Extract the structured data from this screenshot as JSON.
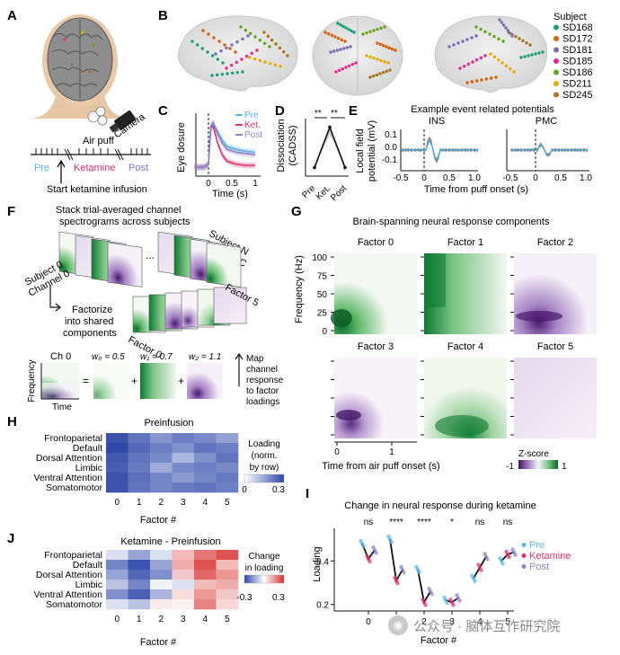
{
  "panels": {
    "A": "A",
    "B": "B",
    "C": "C",
    "D": "D",
    "E": "E",
    "F": "F",
    "G": "G",
    "H": "H",
    "I": "I",
    "J": "J"
  },
  "panel_a": {
    "air_puff": "Air puff",
    "camera": "Camera",
    "pre": "Pre",
    "ketamine": "Ketamine",
    "post": "Post",
    "start_infusion": "Start ketamine infusion"
  },
  "panel_b": {
    "legend_title": "Subject",
    "subjects": [
      {
        "name": "SD168",
        "color": "#1b9e77"
      },
      {
        "name": "SD172",
        "color": "#d95f02"
      },
      {
        "name": "SD181",
        "color": "#7570b3"
      },
      {
        "name": "SD185",
        "color": "#e7298a"
      },
      {
        "name": "SD186",
        "color": "#66a61e"
      },
      {
        "name": "SD211",
        "color": "#e6ab02"
      },
      {
        "name": "SD245",
        "color": "#a6761d"
      }
    ]
  },
  "panel_c": {
    "ylabel": "Eye dosure",
    "xlabel": "Time (s)",
    "legend": [
      {
        "name": "Pre",
        "color": "#5ab4e6"
      },
      {
        "name": "Ket.",
        "color": "#e0336a"
      },
      {
        "name": "Post",
        "color": "#8f84c6"
      }
    ],
    "xticks": [
      "0",
      "0.5",
      "1"
    ]
  },
  "panel_d": {
    "ylabel_1": "Dissociation",
    "ylabel_2": "(CADSS)",
    "sig1": "**",
    "sig2": "**",
    "xticks": [
      "Pre",
      "Ket.",
      "Post"
    ]
  },
  "panel_e": {
    "title": "Example event related potentials",
    "ylabel_1": "Local field",
    "ylabel_2": "potential (mV)",
    "xlabel": "Time from puff onset (s)",
    "subplots": [
      {
        "title": "INS",
        "xticks": [
          "-0.5",
          "0",
          "0.5",
          "1.0"
        ]
      },
      {
        "title": "PMC",
        "xticks": [
          "-0.5",
          "0",
          "0.5",
          "1.0"
        ]
      }
    ],
    "yticks": [
      "0.1",
      "0.0",
      "-0.1"
    ]
  },
  "panel_f": {
    "stack_text_1": "Stack trial-averaged channel",
    "stack_text_2": "spectrograms across subjects",
    "subject_n": "Subject N",
    "channel_c": "Channel C",
    "dots": "...",
    "subject_0": "Subject 0",
    "channel_0": "Channel 0",
    "factorize_1": "Factorize",
    "factorize_2": "into shared",
    "factorize_3": "components",
    "factor_0": "Factor 0",
    "factor_5": "Factor 5",
    "ch0": "Ch 0",
    "frequency": "Frequency",
    "time": "Time",
    "equals": "=",
    "plus": "+",
    "weights": [
      "w₀ = 0.5",
      "w₁ = 0.7",
      "w₂ = 1.1"
    ],
    "map_text": [
      "Map",
      "channel",
      "response",
      "to factor",
      "loadings"
    ]
  },
  "panel_g": {
    "title": "Brain-spanning neural response components",
    "ylabel": "Frequency (Hz)",
    "xlabel": "Time from air puff onset (s)",
    "factors": [
      "Factor 0",
      "Factor 1",
      "Factor 2",
      "Factor 3",
      "Factor 4",
      "Factor 5"
    ],
    "yticks": [
      "100",
      "75",
      "50",
      "25",
      "0"
    ],
    "xticks": [
      "0",
      "1"
    ],
    "cbar_label": "Z-score",
    "cbar_min": "-1",
    "cbar_max": "1"
  },
  "panel_h": {
    "title": "Preinfusion",
    "networks": [
      "Frontoparietal",
      "Default",
      "Dorsal Attention",
      "Limbic",
      "Ventral Attention",
      "Somatomotor"
    ],
    "factor_ticks": [
      "0",
      "1",
      "2",
      "3",
      "4",
      "5"
    ],
    "xlabel": "Factor #",
    "cbar_label_1": "Loading",
    "cbar_label_2": "(norm.",
    "cbar_label_3": "by row)",
    "cbar_min": "0",
    "cbar_max": "0.3",
    "values": [
      [
        0.28,
        0.22,
        0.16,
        0.2,
        0.18,
        0.14
      ],
      [
        0.3,
        0.24,
        0.2,
        0.17,
        0.22,
        0.2
      ],
      [
        0.27,
        0.22,
        0.18,
        0.1,
        0.17,
        0.22
      ],
      [
        0.26,
        0.21,
        0.12,
        0.18,
        0.2,
        0.18
      ],
      [
        0.28,
        0.23,
        0.19,
        0.15,
        0.19,
        0.21
      ],
      [
        0.28,
        0.22,
        0.19,
        0.21,
        0.22,
        0.2
      ]
    ]
  },
  "panel_j": {
    "title": "Ketamine - Preinfusion",
    "networks": [
      "Frontoparietal",
      "Default",
      "Dorsal Attention",
      "Limbic",
      "Ventral Attention",
      "Somatomotor"
    ],
    "factor_ticks": [
      "0",
      "1",
      "2",
      "3",
      "4",
      "5"
    ],
    "xlabel": "Factor #",
    "cbar_label_1": "Change",
    "cbar_label_2": "in loading",
    "cbar_min": "-0.3",
    "cbar_max": "0.3",
    "values": [
      [
        -0.05,
        -0.15,
        -0.05,
        0.1,
        0.2,
        0.25
      ],
      [
        -0.2,
        -0.28,
        -0.15,
        0.12,
        0.25,
        0.1
      ],
      [
        -0.15,
        -0.25,
        -0.18,
        0.08,
        0.22,
        0.15
      ],
      [
        -0.1,
        -0.2,
        -0.02,
        -0.05,
        0.1,
        0.12
      ],
      [
        -0.18,
        -0.26,
        -0.12,
        0.05,
        0.15,
        0.08
      ],
      [
        -0.05,
        -0.1,
        0.03,
        0.02,
        0.18,
        0.06
      ]
    ]
  },
  "panel_i": {
    "title": "Change in neural response during ketamine",
    "ylabel": "Loading",
    "xlabel": "Factor #",
    "sig": [
      "ns",
      "****",
      "****",
      "*",
      "ns",
      "ns"
    ],
    "legend": [
      {
        "name": "Pre",
        "color": "#5ab4e6"
      },
      {
        "name": "Ketamine",
        "color": "#e0336a"
      },
      {
        "name": "Post",
        "color": "#8f84c6"
      }
    ],
    "yticks": [
      "0.4",
      "0.2"
    ],
    "xticks": [
      "0",
      "1",
      "2",
      "3",
      "4",
      "5"
    ]
  },
  "watermark": "公众号 · 脑体互作研究院",
  "chart_data": [
    {
      "type": "line",
      "title": "Eye closure (panel C)",
      "xlabel": "Time (s)",
      "ylabel": "Eye dosure",
      "x": [
        -0.3,
        -0.1,
        0.0,
        0.05,
        0.1,
        0.2,
        0.3,
        0.4,
        0.6,
        0.8,
        1.0
      ],
      "series": [
        {
          "name": "Pre",
          "values": [
            0.15,
            0.15,
            0.2,
            0.85,
            0.9,
            0.75,
            0.6,
            0.5,
            0.45,
            0.42,
            0.4
          ]
        },
        {
          "name": "Ket.",
          "values": [
            0.15,
            0.15,
            0.2,
            0.8,
            0.85,
            0.55,
            0.35,
            0.25,
            0.2,
            0.18,
            0.18
          ]
        },
        {
          "name": "Post",
          "values": [
            0.15,
            0.15,
            0.2,
            0.85,
            0.9,
            0.7,
            0.55,
            0.45,
            0.4,
            0.38,
            0.36
          ]
        }
      ]
    },
    {
      "type": "line",
      "title": "Dissociation (panel D)",
      "categories": [
        "Pre",
        "Ket.",
        "Post"
      ],
      "values": [
        0.1,
        0.9,
        0.1
      ]
    },
    {
      "type": "line",
      "title": "Change in neural response during ketamine (panel I)",
      "xlabel": "Factor #",
      "ylabel": "Loading",
      "categories": [
        "0",
        "1",
        "2",
        "3",
        "4",
        "5"
      ],
      "series": [
        {
          "name": "Pre",
          "values": [
            0.48,
            0.5,
            0.36,
            0.22,
            0.32,
            0.4
          ]
        },
        {
          "name": "Ketamine",
          "values": [
            0.41,
            0.31,
            0.21,
            0.21,
            0.37,
            0.43
          ]
        },
        {
          "name": "Post",
          "values": [
            0.45,
            0.36,
            0.26,
            0.23,
            0.42,
            0.44
          ]
        }
      ]
    }
  ]
}
